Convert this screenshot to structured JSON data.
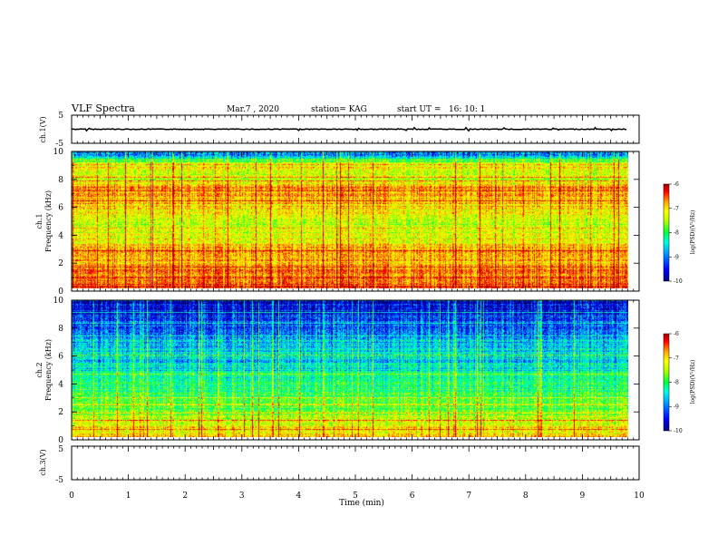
{
  "header": {
    "title": "VLF Spectra",
    "date": "Mar.7 , 2020",
    "station": "station= KAG",
    "start_ut": "start UT =   16: 10: 1"
  },
  "chart_data": [
    {
      "type": "line",
      "panel": "ch1-waveform",
      "ylabel": "ch.1(V)",
      "ylim": [
        -5,
        5
      ],
      "ytick_labels": [
        "5",
        "-5"
      ],
      "xlim": [
        0,
        10
      ],
      "x": [
        0,
        9.8
      ],
      "y": [
        0,
        0
      ]
    },
    {
      "type": "heatmap",
      "panel": "ch1-spectrogram",
      "ylabel": "ch.1\nFrequency (kHz)",
      "ylim": [
        0,
        10
      ],
      "ytick_labels": [
        "0",
        "2",
        "4",
        "6",
        "8",
        "10"
      ],
      "xlim": [
        0,
        10
      ],
      "data_xmax": 9.8,
      "colorbar": {
        "label": "log(PSD)(V²/Hz)",
        "range": [
          -10,
          -6
        ],
        "tick_labels": [
          "-6",
          "-7",
          "-8",
          "-9",
          "-10"
        ]
      },
      "approx_mean_log_psd_by_frequency": [
        {
          "f": 0.25,
          "v": -6.6
        },
        {
          "f": 1.0,
          "v": -6.8
        },
        {
          "f": 2.0,
          "v": -7.0
        },
        {
          "f": 3.0,
          "v": -7.1
        },
        {
          "f": 4.0,
          "v": -7.6
        },
        {
          "f": 5.0,
          "v": -7.7
        },
        {
          "f": 6.0,
          "v": -7.2
        },
        {
          "f": 7.0,
          "v": -6.9
        },
        {
          "f": 8.0,
          "v": -7.6
        },
        {
          "f": 9.0,
          "v": -7.3
        },
        {
          "f": 9.9,
          "v": -9.3
        }
      ]
    },
    {
      "type": "heatmap",
      "panel": "ch2-spectrogram",
      "ylabel": "ch.2\nFrequency (kHz)",
      "ylim": [
        0,
        10
      ],
      "ytick_labels": [
        "0",
        "2",
        "4",
        "6",
        "8",
        "10"
      ],
      "xlim": [
        0,
        10
      ],
      "data_xmax": 9.8,
      "colorbar": {
        "label": "log(PSD)(V²/Hz)",
        "range": [
          -10,
          -6
        ],
        "tick_labels": [
          "-6",
          "-7",
          "-8",
          "-9",
          "-10"
        ]
      },
      "approx_mean_log_psd_by_frequency": [
        {
          "f": 0.25,
          "v": -7.2
        },
        {
          "f": 1.0,
          "v": -7.4
        },
        {
          "f": 2.0,
          "v": -8.0
        },
        {
          "f": 3.0,
          "v": -8.2
        },
        {
          "f": 4.0,
          "v": -8.4
        },
        {
          "f": 5.0,
          "v": -8.7
        },
        {
          "f": 6.0,
          "v": -8.8
        },
        {
          "f": 7.0,
          "v": -8.9
        },
        {
          "f": 8.0,
          "v": -9.2
        },
        {
          "f": 9.0,
          "v": -9.5
        },
        {
          "f": 9.9,
          "v": -9.8
        }
      ]
    },
    {
      "type": "line",
      "panel": "ch3-waveform",
      "ylabel": "ch.3(V)",
      "ylim": [
        -5,
        5
      ],
      "ytick_labels": [
        "5",
        "-5"
      ],
      "xlim": [
        0,
        10
      ]
    }
  ],
  "x_axis": {
    "label": "Time (min)",
    "range": [
      0,
      10
    ],
    "tick_labels": [
      "0",
      "1",
      "2",
      "3",
      "4",
      "5",
      "6",
      "7",
      "8",
      "9",
      "10"
    ]
  },
  "colors": {
    "colormap": [
      "#00007a",
      "#0000ff",
      "#0096ff",
      "#00ffe6",
      "#00ff3c",
      "#b4ff00",
      "#ffff00",
      "#ffa000",
      "#ff0000",
      "#a00000"
    ]
  }
}
